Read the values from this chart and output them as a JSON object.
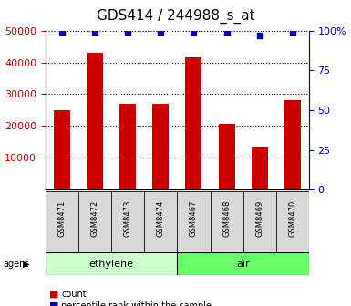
{
  "title": "GDS414 / 244988_s_at",
  "samples": [
    "GSM8471",
    "GSM8472",
    "GSM8473",
    "GSM8474",
    "GSM8467",
    "GSM8468",
    "GSM8469",
    "GSM8470"
  ],
  "counts": [
    25000,
    43000,
    27000,
    27000,
    41500,
    20800,
    13500,
    28000
  ],
  "percentiles": [
    99,
    99,
    99,
    99,
    99,
    99,
    97,
    99
  ],
  "ylim_left": [
    0,
    50000
  ],
  "ylim_right": [
    0,
    100
  ],
  "yticks_left": [
    10000,
    20000,
    30000,
    40000,
    50000
  ],
  "yticks_right": [
    0,
    25,
    50,
    75,
    100
  ],
  "groups": [
    {
      "label": "ethylene",
      "indices": [
        0,
        1,
        2,
        3
      ],
      "color": "#ccffcc"
    },
    {
      "label": "air",
      "indices": [
        4,
        5,
        6,
        7
      ],
      "color": "#66ff66"
    }
  ],
  "agent_label": "agent",
  "bar_color": "#cc0000",
  "dot_color": "#0000bb",
  "bar_width": 0.5,
  "title_fontsize": 11,
  "axis_color_left": "#cc0000",
  "axis_color_right": "#0000bb",
  "legend_items": [
    {
      "color": "#cc0000",
      "label": "count"
    },
    {
      "color": "#0000bb",
      "label": "percentile rank within the sample"
    }
  ],
  "sample_box_color": "#d8d8d8",
  "grid_color": "#000000"
}
